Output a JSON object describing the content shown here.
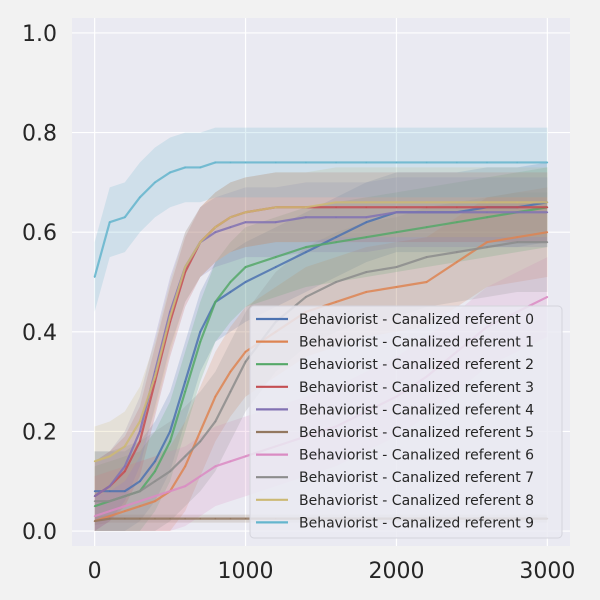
{
  "chart_data": {
    "type": "line",
    "title": "",
    "xlabel": "",
    "ylabel": "",
    "xlim": [
      -150,
      3150
    ],
    "ylim": [
      -0.03,
      1.03
    ],
    "x_ticks": [
      0,
      1000,
      2000,
      3000
    ],
    "x_tick_labels": [
      "0",
      "1000",
      "2000",
      "3000"
    ],
    "y_ticks": [
      0.0,
      0.2,
      0.4,
      0.6,
      0.8,
      1.0
    ],
    "y_tick_labels": [
      "0.0",
      "0.2",
      "0.4",
      "0.6",
      "0.8",
      "1.0"
    ],
    "grid": true,
    "legend_position": "lower-right",
    "x": [
      0,
      100,
      200,
      300,
      400,
      500,
      600,
      700,
      800,
      900,
      1000,
      1200,
      1400,
      1600,
      1800,
      2000,
      2200,
      2400,
      2600,
      2800,
      3000
    ],
    "series": [
      {
        "name": "Behaviorist - Canalized referent 0",
        "color": "#4c72b0",
        "values": [
          0.08,
          0.08,
          0.08,
          0.1,
          0.14,
          0.2,
          0.3,
          0.4,
          0.46,
          0.48,
          0.5,
          0.53,
          0.56,
          0.59,
          0.62,
          0.64,
          0.64,
          0.64,
          0.65,
          0.65,
          0.66
        ],
        "band": 0.08
      },
      {
        "name": "Behaviorist - Canalized referent 1",
        "color": "#dd8452",
        "values": [
          0.02,
          0.03,
          0.04,
          0.05,
          0.06,
          0.08,
          0.13,
          0.2,
          0.27,
          0.32,
          0.36,
          0.4,
          0.44,
          0.46,
          0.48,
          0.49,
          0.5,
          0.54,
          0.58,
          0.59,
          0.6
        ],
        "band": 0.09
      },
      {
        "name": "Behaviorist - Canalized referent 2",
        "color": "#55a868",
        "values": [
          0.05,
          0.06,
          0.07,
          0.08,
          0.12,
          0.18,
          0.28,
          0.38,
          0.46,
          0.5,
          0.53,
          0.55,
          0.57,
          0.58,
          0.59,
          0.6,
          0.61,
          0.62,
          0.63,
          0.64,
          0.65
        ],
        "band": 0.08
      },
      {
        "name": "Behaviorist - Canalized referent 3",
        "color": "#c44e52",
        "values": [
          0.07,
          0.09,
          0.12,
          0.18,
          0.3,
          0.42,
          0.52,
          0.58,
          0.61,
          0.63,
          0.64,
          0.65,
          0.65,
          0.65,
          0.65,
          0.65,
          0.65,
          0.65,
          0.65,
          0.65,
          0.65
        ],
        "band": 0.07
      },
      {
        "name": "Behaviorist - Canalized referent 4",
        "color": "#8172b3",
        "values": [
          0.07,
          0.09,
          0.13,
          0.2,
          0.32,
          0.44,
          0.53,
          0.58,
          0.6,
          0.61,
          0.62,
          0.62,
          0.63,
          0.63,
          0.63,
          0.64,
          0.64,
          0.64,
          0.64,
          0.64,
          0.64
        ],
        "band": 0.07
      },
      {
        "name": "Behaviorist - Canalized referent 5",
        "color": "#937860",
        "values": [
          0.02,
          0.025,
          0.025,
          0.025,
          0.025,
          0.025,
          0.025,
          0.025,
          0.025,
          0.025,
          0.025,
          0.025,
          0.025,
          0.025,
          0.025,
          0.025,
          0.025,
          0.025,
          0.025,
          0.025,
          0.025
        ],
        "band": 0.008
      },
      {
        "name": "Behaviorist - Canalized referent 6",
        "color": "#da8bc3",
        "values": [
          0.03,
          0.04,
          0.05,
          0.06,
          0.07,
          0.08,
          0.09,
          0.11,
          0.13,
          0.14,
          0.15,
          0.17,
          0.19,
          0.21,
          0.24,
          0.27,
          0.31,
          0.36,
          0.41,
          0.44,
          0.47
        ],
        "band": 0.08
      },
      {
        "name": "Behaviorist - Canalized referent 7",
        "color": "#8c8c8c",
        "values": [
          0.06,
          0.06,
          0.07,
          0.08,
          0.1,
          0.12,
          0.15,
          0.18,
          0.22,
          0.28,
          0.34,
          0.42,
          0.47,
          0.5,
          0.52,
          0.53,
          0.55,
          0.56,
          0.57,
          0.58,
          0.58
        ],
        "band": 0.1
      },
      {
        "name": "Behaviorist - Canalized referent 8",
        "color": "#ccb974",
        "values": [
          0.14,
          0.15,
          0.17,
          0.22,
          0.31,
          0.43,
          0.53,
          0.58,
          0.61,
          0.63,
          0.64,
          0.65,
          0.65,
          0.66,
          0.66,
          0.66,
          0.66,
          0.66,
          0.66,
          0.66,
          0.66
        ],
        "band": 0.07
      },
      {
        "name": "Behaviorist - Canalized referent 9",
        "color": "#64b5cd",
        "values": [
          0.51,
          0.62,
          0.63,
          0.67,
          0.7,
          0.72,
          0.73,
          0.73,
          0.74,
          0.74,
          0.74,
          0.74,
          0.74,
          0.74,
          0.74,
          0.74,
          0.74,
          0.74,
          0.74,
          0.74,
          0.74
        ],
        "band": 0.07
      }
    ]
  }
}
